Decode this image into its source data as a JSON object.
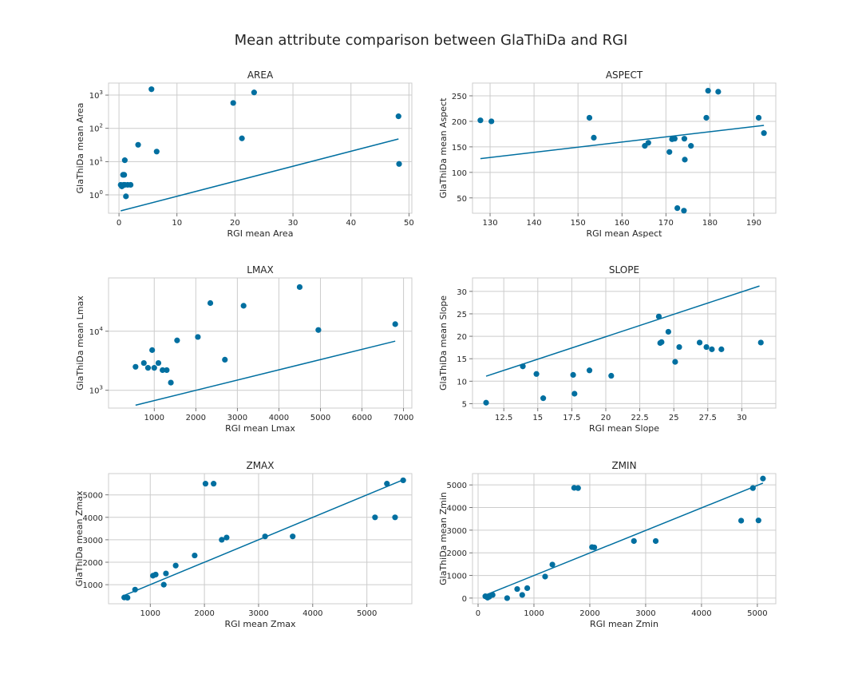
{
  "figure": {
    "title": "Mean attribute comparison between GlaThiDa and RGI"
  },
  "chart_data": [
    {
      "type": "scatter",
      "title": "AREA",
      "xlabel": "RGI mean Area",
      "ylabel": "GlaThiDa mean Area",
      "xlim": [
        -1.8,
        50.5
      ],
      "xticks": [
        0,
        10,
        20,
        30,
        40,
        50
      ],
      "yscale": "log",
      "ylim": [
        0.28,
        2300
      ],
      "yticks": [
        1,
        10,
        100,
        1000
      ],
      "ytick_labels": [
        [
          "10",
          "0"
        ],
        [
          "10",
          "1"
        ],
        [
          "10",
          "2"
        ],
        [
          "10",
          "3"
        ]
      ],
      "grid": true,
      "marker_color": "#006fa0",
      "points": [
        [
          5.6,
          1500
        ],
        [
          23.3,
          1200
        ],
        [
          19.7,
          580
        ],
        [
          48.2,
          230
        ],
        [
          21.2,
          50
        ],
        [
          3.3,
          32
        ],
        [
          6.5,
          20
        ],
        [
          1.0,
          11
        ],
        [
          0.7,
          4
        ],
        [
          0.9,
          4
        ],
        [
          0.3,
          2
        ],
        [
          0.5,
          1.8
        ],
        [
          0.8,
          2
        ],
        [
          1.0,
          2
        ],
        [
          1.5,
          2
        ],
        [
          2.0,
          2
        ],
        [
          1.2,
          0.9
        ],
        [
          48.3,
          8.5
        ]
      ],
      "fit_line": [
        [
          0.3,
          0.33
        ],
        [
          48.2,
          48
        ]
      ]
    },
    {
      "type": "scatter",
      "title": "ASPECT",
      "xlabel": "RGI mean Aspect",
      "ylabel": "GlaThiDa mean Aspect",
      "xlim": [
        126,
        195
      ],
      "xticks": [
        130,
        140,
        150,
        160,
        170,
        180,
        190
      ],
      "ylim": [
        20,
        275
      ],
      "yticks": [
        50,
        100,
        150,
        200,
        250
      ],
      "grid": true,
      "marker_color": "#006fa0",
      "points": [
        [
          127.8,
          202
        ],
        [
          130.3,
          200
        ],
        [
          152.6,
          207
        ],
        [
          153.6,
          168
        ],
        [
          165.2,
          152
        ],
        [
          166,
          158
        ],
        [
          170.8,
          140
        ],
        [
          171.4,
          165
        ],
        [
          172,
          166
        ],
        [
          172.6,
          30
        ],
        [
          174.2,
          166
        ],
        [
          174.3,
          125
        ],
        [
          174.1,
          25
        ],
        [
          175.7,
          152
        ],
        [
          179.2,
          207
        ],
        [
          179.6,
          260
        ],
        [
          181.9,
          258
        ],
        [
          191.1,
          207
        ],
        [
          192.3,
          177
        ]
      ],
      "fit_line": [
        [
          127.8,
          127
        ],
        [
          192.3,
          192
        ]
      ]
    },
    {
      "type": "scatter",
      "title": "LMAX",
      "xlabel": "RGI mean Lmax",
      "ylabel": "GlaThiDa mean Lmax",
      "xlim": [
        -100,
        7200
      ],
      "xticks": [
        1000,
        2000,
        3000,
        4000,
        5000,
        6000,
        7000
      ],
      "yscale": "log",
      "ylim": [
        500,
        80000
      ],
      "yticks": [
        1000,
        10000
      ],
      "ytick_labels": [
        [
          "10",
          "3"
        ],
        [
          "10",
          "4"
        ]
      ],
      "grid": true,
      "marker_color": "#006fa0",
      "points": [
        [
          4500,
          56000
        ],
        [
          2350,
          30000
        ],
        [
          3150,
          27000
        ],
        [
          4950,
          10500
        ],
        [
          6800,
          13200
        ],
        [
          2050,
          8000
        ],
        [
          1550,
          7000
        ],
        [
          950,
          4800
        ],
        [
          2700,
          3300
        ],
        [
          550,
          2500
        ],
        [
          750,
          2900
        ],
        [
          850,
          2400
        ],
        [
          1100,
          2900
        ],
        [
          1000,
          2400
        ],
        [
          1200,
          2200
        ],
        [
          1300,
          2200
        ],
        [
          1400,
          1350
        ]
      ],
      "fit_line": [
        [
          550,
          560
        ],
        [
          6800,
          6800
        ]
      ]
    },
    {
      "type": "scatter",
      "title": "SLOPE",
      "xlabel": "RGI mean Slope",
      "ylabel": "GlaThiDa mean Slope",
      "xlim": [
        10.2,
        32.5
      ],
      "xticks": [
        12.5,
        15.0,
        17.5,
        20.0,
        22.5,
        25.0,
        27.5,
        30.0
      ],
      "ylim": [
        4,
        33
      ],
      "yticks": [
        5,
        10,
        15,
        20,
        25,
        30
      ],
      "grid": true,
      "marker_color": "#006fa0",
      "points": [
        [
          11.2,
          5.2
        ],
        [
          13.9,
          13.3
        ],
        [
          14.9,
          11.6
        ],
        [
          15.4,
          6.2
        ],
        [
          17.6,
          11.4
        ],
        [
          17.7,
          7.2
        ],
        [
          18.8,
          12.4
        ],
        [
          20.4,
          11.2
        ],
        [
          23.9,
          24.4
        ],
        [
          24.0,
          18.5
        ],
        [
          24.1,
          18.7
        ],
        [
          24.6,
          21.0
        ],
        [
          25.1,
          14.3
        ],
        [
          25.4,
          17.6
        ],
        [
          26.9,
          18.6
        ],
        [
          27.4,
          17.6
        ],
        [
          27.8,
          17.1
        ],
        [
          28.5,
          17.1
        ],
        [
          31.4,
          18.6
        ]
      ],
      "fit_line": [
        [
          11.2,
          11.1
        ],
        [
          31.3,
          31.2
        ]
      ]
    },
    {
      "type": "scatter",
      "title": "ZMAX",
      "xlabel": "RGI mean Zmax",
      "ylabel": "GlaThiDa mean Zmax",
      "xlim": [
        230,
        5830
      ],
      "xticks": [
        1000,
        2000,
        3000,
        4000,
        5000
      ],
      "ylim": [
        150,
        5950
      ],
      "yticks": [
        1000,
        2000,
        3000,
        4000,
        5000
      ],
      "grid": true,
      "marker_color": "#006fa0",
      "points": [
        [
          520,
          430
        ],
        [
          580,
          420
        ],
        [
          720,
          780
        ],
        [
          1050,
          1400
        ],
        [
          1100,
          1450
        ],
        [
          1250,
          1000
        ],
        [
          1290,
          1500
        ],
        [
          1470,
          1850
        ],
        [
          1820,
          2300
        ],
        [
          2020,
          5500
        ],
        [
          2170,
          5500
        ],
        [
          2320,
          3000
        ],
        [
          2410,
          3100
        ],
        [
          3120,
          3150
        ],
        [
          3630,
          3150
        ],
        [
          5150,
          4000
        ],
        [
          5370,
          5500
        ],
        [
          5520,
          4000
        ],
        [
          5670,
          5650
        ]
      ],
      "fit_line": [
        [
          520,
          520
        ],
        [
          5670,
          5670
        ]
      ]
    },
    {
      "type": "scatter",
      "title": "ZMIN",
      "xlabel": "RGI mean Zmin",
      "ylabel": "GlaThiDa mean Zmin",
      "xlim": [
        -100,
        5330
      ],
      "xticks": [
        0,
        1000,
        2000,
        3000,
        4000,
        5000
      ],
      "ylim": [
        -250,
        5500
      ],
      "yticks": [
        0,
        1000,
        2000,
        3000,
        4000,
        5000
      ],
      "grid": true,
      "marker_color": "#006fa0",
      "points": [
        [
          130,
          80
        ],
        [
          170,
          20
        ],
        [
          200,
          60
        ],
        [
          260,
          140
        ],
        [
          520,
          0
        ],
        [
          700,
          400
        ],
        [
          790,
          140
        ],
        [
          880,
          440
        ],
        [
          1200,
          950
        ],
        [
          1330,
          1480
        ],
        [
          1720,
          4870
        ],
        [
          1790,
          4860
        ],
        [
          2040,
          2250
        ],
        [
          2080,
          2240
        ],
        [
          2790,
          2520
        ],
        [
          3180,
          2520
        ],
        [
          4710,
          3420
        ],
        [
          4920,
          4860
        ],
        [
          5020,
          3430
        ],
        [
          5100,
          5280
        ]
      ],
      "fit_line": [
        [
          130,
          130
        ],
        [
          5100,
          5080
        ]
      ]
    }
  ]
}
